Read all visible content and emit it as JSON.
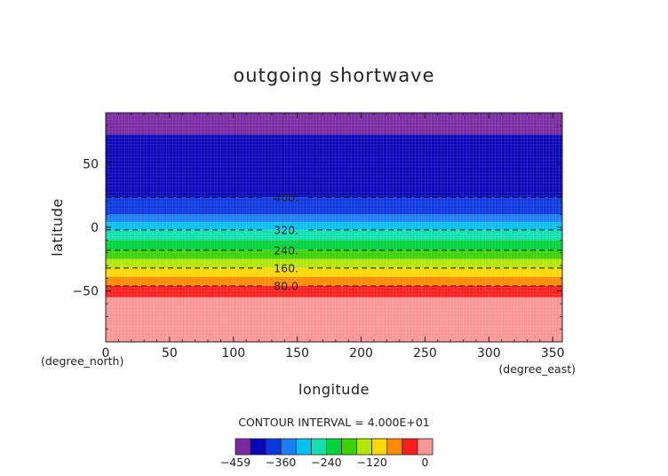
{
  "chart_data": {
    "type": "heatmap",
    "title": "outgoing shortwave",
    "xlabel": "longitude",
    "ylabel": "latitude",
    "x_unit_label": "(degree_east)",
    "y_unit_label": "(degree_north)",
    "xlim": [
      0,
      357.5
    ],
    "ylim": [
      -90,
      90
    ],
    "x_ticks": [
      0,
      50,
      100,
      150,
      200,
      250,
      300,
      350
    ],
    "y_ticks": [
      50,
      0,
      -50
    ],
    "x_tick_labels": [
      "0",
      "50",
      "100",
      "150",
      "200",
      "250",
      "300",
      "350"
    ],
    "y_tick_labels": [
      "50",
      "0",
      "−50"
    ],
    "contour_interval_text": "CONTOUR INTERVAL = 4.000E+01",
    "contour_lines": [
      {
        "label": "400.",
        "lat": 23.5,
        "label_lon": 135
      },
      {
        "label": "320.",
        "lat": -2.0,
        "label_lon": 135
      },
      {
        "label": "240.",
        "lat": -18.0,
        "label_lon": 135
      },
      {
        "label": "160.",
        "lat": -32.0,
        "label_lon": 135
      },
      {
        "label": "80.0",
        "lat": -46.0,
        "label_lon": 135
      }
    ],
    "lat_bands": [
      {
        "lat_top": 90,
        "lat_bottom": 73,
        "value": -440
      },
      {
        "lat_top": 73,
        "lat_bottom": 23.5,
        "value": -410
      },
      {
        "lat_top": 23.5,
        "lat_bottom": 10,
        "value": -385
      },
      {
        "lat_top": 10,
        "lat_bottom": 4,
        "value": -370
      },
      {
        "lat_top": 4,
        "lat_bottom": -2,
        "value": -340
      },
      {
        "lat_top": -2,
        "lat_bottom": -10,
        "value": -300
      },
      {
        "lat_top": -10,
        "lat_bottom": -18,
        "value": -260
      },
      {
        "lat_top": -18,
        "lat_bottom": -25,
        "value": -220
      },
      {
        "lat_top": -25,
        "lat_bottom": -32,
        "value": -180
      },
      {
        "lat_top": -32,
        "lat_bottom": -39,
        "value": -140
      },
      {
        "lat_top": -39,
        "lat_bottom": -46,
        "value": -100
      },
      {
        "lat_top": -46,
        "lat_bottom": -55,
        "value": -60
      },
      {
        "lat_top": -55,
        "lat_bottom": -90,
        "value": -20
      }
    ],
    "colorbar": {
      "min": -459,
      "max": 0,
      "tick_labels": [
        {
          "label": "−459",
          "value": -459
        },
        {
          "label": "−360",
          "value": -360
        },
        {
          "label": "−240",
          "value": -240
        },
        {
          "label": "−120",
          "value": -120
        },
        {
          "label": "0",
          "value": 0
        }
      ],
      "levels": [
        {
          "from": -459,
          "to": -440,
          "color": "#7a2aa0"
        },
        {
          "from": -440,
          "to": -400,
          "color": "#0a06b8"
        },
        {
          "from": -400,
          "to": -360,
          "color": "#0d38e0"
        },
        {
          "from": -360,
          "to": -320,
          "color": "#1a7df5"
        },
        {
          "from": -320,
          "to": -280,
          "color": "#00c0f0"
        },
        {
          "from": -280,
          "to": -240,
          "color": "#10e0b0"
        },
        {
          "from": -240,
          "to": -200,
          "color": "#00d23c"
        },
        {
          "from": -200,
          "to": -160,
          "color": "#3cd200"
        },
        {
          "from": -160,
          "to": -120,
          "color": "#b4e600"
        },
        {
          "from": -120,
          "to": -80,
          "color": "#ffd800"
        },
        {
          "from": -80,
          "to": -40,
          "color": "#ff8a00"
        },
        {
          "from": -40,
          "to": 0,
          "color": "#ff1e1e"
        },
        {
          "from": 0,
          "to": 1,
          "color": "#fa9696"
        }
      ]
    },
    "band_colors": {
      "-440": "#7a2aa0",
      "-410": "#0a06b8",
      "-385": "#0d38e0",
      "-370": "#1a7df5",
      "-340": "#00c0f0",
      "-300": "#10e0b0",
      "-260": "#00d23c",
      "-220": "#3cd200",
      "-180": "#b4e600",
      "-140": "#ffd800",
      "-100": "#ff8a00",
      "-60": "#ff1e1e",
      "-20": "#fa9696"
    }
  }
}
